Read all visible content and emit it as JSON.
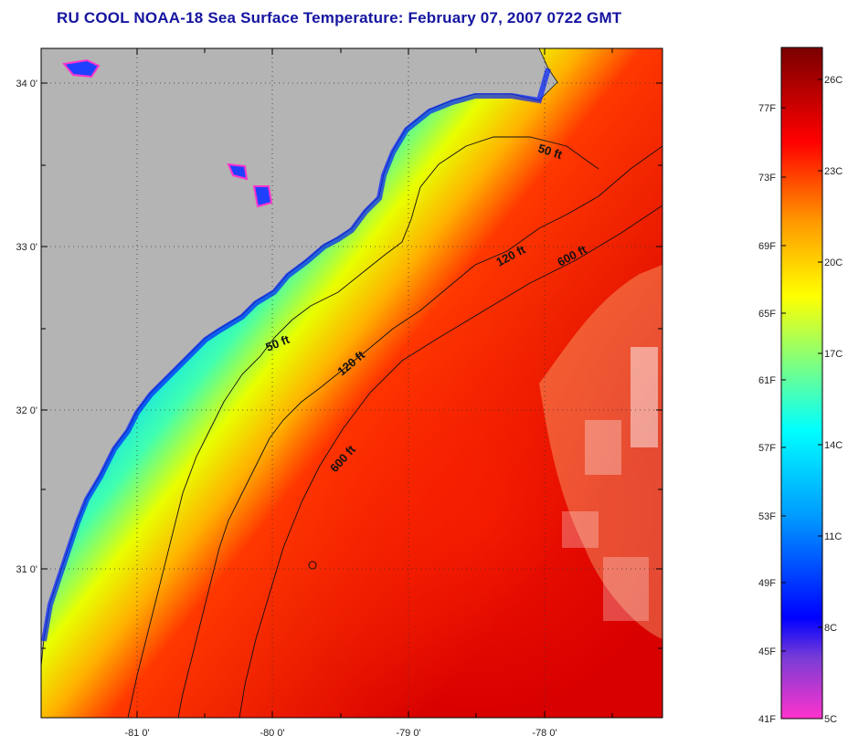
{
  "title": "RU COOL  NOAA-18  Sea Surface Temperature:  February 07, 2007 0722 GMT",
  "map": {
    "lat_labels": [
      "34 0'",
      "33 0'",
      "32 0'",
      "31 0'"
    ],
    "lon_labels": [
      "-81 0'",
      "-80 0'",
      "-79 0'",
      "-78 0'"
    ],
    "isobath_labels": [
      "50 ft",
      "50 ft",
      "120 ft",
      "120 ft",
      "600 ft",
      "600 ft"
    ]
  },
  "colorbar": {
    "fahrenheit_labels": [
      "77F",
      "73F",
      "69F",
      "65F",
      "61F",
      "57F",
      "53F",
      "49F",
      "45F",
      "41F"
    ],
    "celsius_labels": [
      "26C",
      "23C",
      "20C",
      "17C",
      "14C",
      "11C",
      "8C",
      "5C"
    ],
    "colors": [
      "#ff33cc",
      "#7a3cd6",
      "#0000ff",
      "#0099ff",
      "#00ffff",
      "#ffff00",
      "#ff9900",
      "#ff0000",
      "#7a0000"
    ]
  }
}
